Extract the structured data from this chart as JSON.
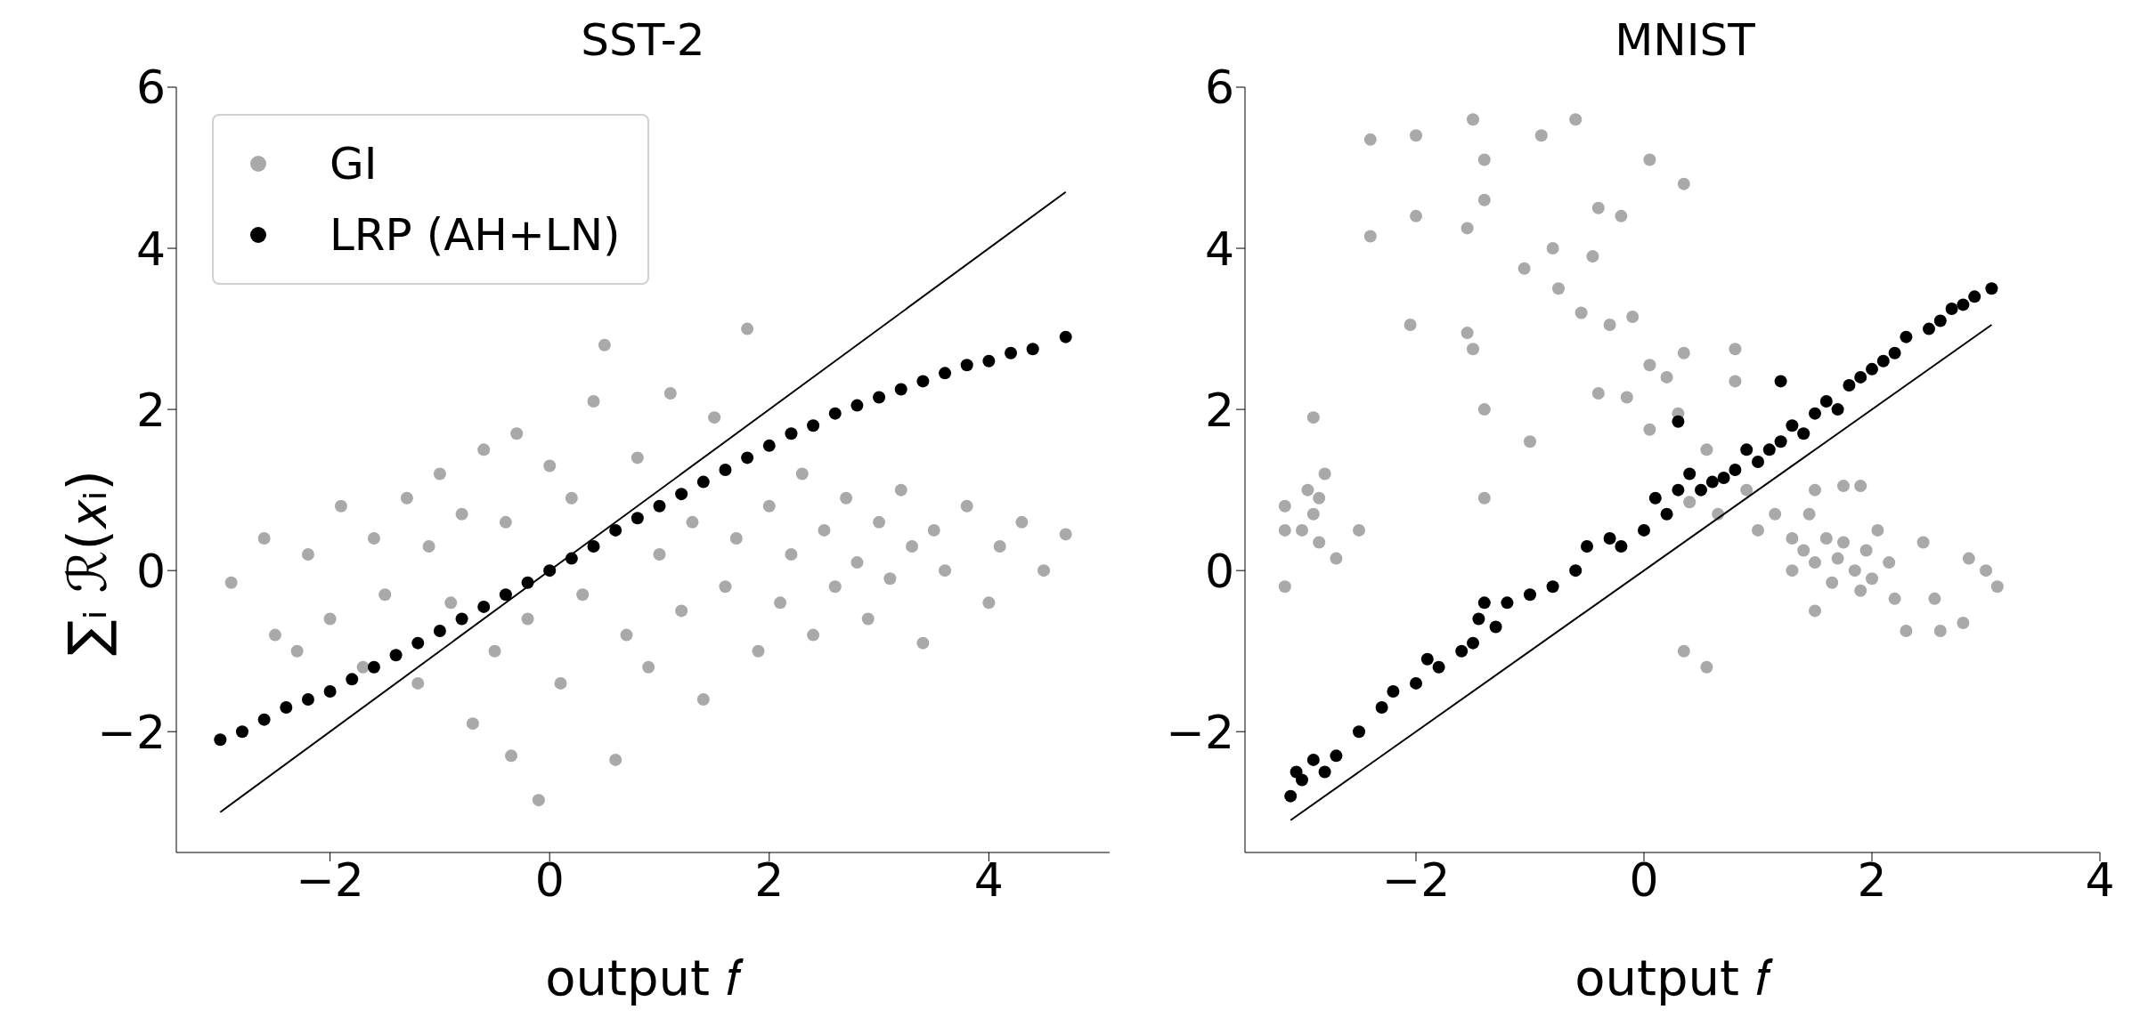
{
  "chart_data": [
    {
      "type": "scatter",
      "title": "SST-2",
      "xlabel": "output 𝑓",
      "ylabel": "∑ᵢ ℛ(𝑥ᵢ)",
      "xlim": [
        -3.4,
        5.1
      ],
      "ylim": [
        -3.5,
        6.0
      ],
      "xticks": [
        {
          "value": -2,
          "label": "−2"
        },
        0,
        2,
        4
      ],
      "yticks": [
        {
          "value": -2,
          "label": "−2"
        },
        0,
        2,
        4,
        6
      ],
      "grid": false,
      "legend": "top left",
      "series": [
        {
          "name": "GI",
          "marker": "circle",
          "color": "#a9a9a9",
          "x": [
            -2.9,
            -2.6,
            -2.5,
            -2.3,
            -2.2,
            -2.0,
            -1.9,
            -1.7,
            -1.6,
            -1.5,
            -1.3,
            -1.2,
            -1.1,
            -1.0,
            -0.9,
            -0.8,
            -0.7,
            -0.6,
            -0.5,
            -0.4,
            -0.35,
            -0.3,
            -0.2,
            -0.1,
            0.0,
            0.1,
            0.2,
            0.3,
            0.4,
            0.5,
            0.6,
            0.7,
            0.8,
            0.9,
            1.0,
            1.1,
            1.2,
            1.3,
            1.4,
            1.5,
            1.6,
            1.7,
            1.8,
            1.9,
            2.0,
            2.1,
            2.2,
            2.3,
            2.4,
            2.5,
            2.6,
            2.7,
            2.8,
            2.9,
            3.0,
            3.1,
            3.2,
            3.3,
            3.4,
            3.5,
            3.6,
            3.8,
            4.0,
            4.1,
            4.3,
            4.5,
            4.7
          ],
          "values": [
            -0.15,
            0.4,
            -0.8,
            -1.0,
            0.2,
            -0.6,
            0.8,
            -1.2,
            0.4,
            -0.3,
            0.9,
            -1.4,
            0.3,
            1.2,
            -0.4,
            0.7,
            -1.9,
            1.5,
            -1.0,
            0.6,
            -2.3,
            1.7,
            -0.6,
            -2.85,
            1.3,
            -1.4,
            0.9,
            -0.3,
            2.1,
            2.8,
            -2.35,
            -0.8,
            1.4,
            -1.2,
            0.2,
            2.2,
            -0.5,
            0.6,
            -1.6,
            1.9,
            -0.2,
            0.4,
            3.0,
            -1.0,
            0.8,
            -0.4,
            0.2,
            1.2,
            -0.8,
            0.5,
            -0.2,
            0.9,
            0.1,
            -0.6,
            0.6,
            -0.1,
            1.0,
            0.3,
            -0.9,
            0.5,
            0.0,
            0.8,
            -0.4,
            0.3,
            0.6,
            0.0,
            0.45
          ]
        },
        {
          "name": "LRP (AH+LN)",
          "marker": "circle",
          "color": "#000000",
          "x": [
            -3.0,
            -2.8,
            -2.6,
            -2.4,
            -2.2,
            -2.0,
            -1.8,
            -1.6,
            -1.4,
            -1.2,
            -1.0,
            -0.8,
            -0.6,
            -0.4,
            -0.2,
            0,
            0.2,
            0.4,
            0.6,
            0.8,
            1.0,
            1.2,
            1.4,
            1.6,
            1.8,
            2.0,
            2.2,
            2.4,
            2.6,
            2.8,
            3.0,
            3.2,
            3.4,
            3.6,
            3.8,
            4.0,
            4.2,
            4.4,
            4.7
          ],
          "values": [
            -2.1,
            -2.0,
            -1.85,
            -1.7,
            -1.6,
            -1.5,
            -1.35,
            -1.2,
            -1.05,
            -0.9,
            -0.75,
            -0.6,
            -0.45,
            -0.3,
            -0.15,
            0,
            0.15,
            0.3,
            0.5,
            0.65,
            0.8,
            0.95,
            1.1,
            1.25,
            1.4,
            1.55,
            1.7,
            1.8,
            1.95,
            2.05,
            2.15,
            2.25,
            2.35,
            2.45,
            2.55,
            2.6,
            2.7,
            2.75,
            2.9
          ]
        },
        {
          "type": "line",
          "marker": "none",
          "color": "#000000",
          "x": [
            -3.0,
            4.7
          ],
          "values": [
            -3.0,
            4.7
          ]
        }
      ]
    },
    {
      "type": "scatter",
      "title": "MNIST",
      "xlabel": "output 𝑓",
      "xlim": [
        -3.5,
        4.0
      ],
      "ylim": [
        -3.5,
        6.0
      ],
      "xticks": [
        {
          "value": -2,
          "label": "−2"
        },
        0,
        2,
        4
      ],
      "yticks": [
        {
          "value": -2,
          "label": "−2"
        },
        0,
        2,
        4,
        6
      ],
      "grid": false,
      "series": [
        {
          "marker": "circle",
          "color": "#a9a9a9",
          "x": [
            -2.4,
            -2.0,
            -1.5,
            -0.6,
            -0.9,
            -1.4,
            0.05,
            0.35,
            -2.0,
            -2.4,
            -1.55,
            -1.4,
            -0.4,
            -0.2,
            -0.8,
            -1.05,
            -0.45,
            -0.75,
            -0.55,
            -0.3,
            -0.1,
            -2.05,
            -1.55,
            -1.5,
            0.05,
            0.2,
            0.35,
            0.8,
            -0.4,
            -0.15,
            -1.4,
            -1.0,
            0.8,
            0.55,
            0.05,
            0.3,
            -2.95,
            -3.15,
            -2.85,
            -2.9,
            -2.8,
            -3.15,
            -3.0,
            -2.9,
            -2.85,
            -2.7,
            -3.15,
            -2.5,
            -1.4,
            0.35,
            0.55,
            0.4,
            0.65,
            0.9,
            1.0,
            1.15,
            1.3,
            1.4,
            1.45,
            1.5,
            1.6,
            1.65,
            1.7,
            1.75,
            1.85,
            1.9,
            1.95,
            2.0,
            2.05,
            2.15,
            2.2,
            2.3,
            2.45,
            2.55,
            2.6,
            2.8,
            2.85,
            3.0,
            3.1,
            1.5,
            1.3,
            1.75,
            1.9,
            1.5
          ],
          "values": [
            5.35,
            5.4,
            5.6,
            5.6,
            5.4,
            5.1,
            5.1,
            4.8,
            4.4,
            4.15,
            4.25,
            4.6,
            4.5,
            4.4,
            4.0,
            3.75,
            3.9,
            3.5,
            3.2,
            3.05,
            3.15,
            3.05,
            2.95,
            2.75,
            2.55,
            2.4,
            2.7,
            2.75,
            2.2,
            2.15,
            2.0,
            1.6,
            2.35,
            1.5,
            1.75,
            1.95,
            1.0,
            0.8,
            0.9,
            1.9,
            1.2,
            0.5,
            0.5,
            0.7,
            0.35,
            0.15,
            -0.2,
            0.5,
            0.9,
            -1.0,
            -1.2,
            0.85,
            0.7,
            1.0,
            0.5,
            0.7,
            0.4,
            0.25,
            0.7,
            0.1,
            0.4,
            -0.15,
            0.15,
            0.35,
            0.0,
            -0.25,
            0.25,
            -0.1,
            0.5,
            0.1,
            -0.35,
            -0.75,
            0.35,
            -0.35,
            -0.75,
            -0.65,
            0.15,
            0.0,
            -0.2,
            -0.5,
            0.0,
            1.05,
            1.05,
            1.0
          ]
        },
        {
          "marker": "circle",
          "color": "#000000",
          "x": [
            -3.1,
            -3.05,
            -3.0,
            -2.9,
            -2.8,
            -2.7,
            -2.5,
            -2.3,
            -2.2,
            -2.0,
            -1.9,
            -1.8,
            -1.6,
            -1.5,
            -1.45,
            -1.3,
            -1.2,
            -1.0,
            -0.8,
            -0.6,
            -0.5,
            -0.3,
            -0.2,
            0.0,
            0.1,
            0.2,
            0.3,
            0.4,
            0.5,
            0.6,
            0.7,
            0.8,
            0.9,
            1.0,
            1.1,
            1.2,
            1.3,
            1.4,
            1.5,
            1.6,
            1.7,
            1.8,
            1.9,
            2.0,
            2.1,
            2.2,
            2.3,
            2.5,
            2.6,
            2.7,
            2.8,
            2.9,
            3.05,
            0.3,
            -1.4,
            1.2
          ],
          "values": [
            -2.8,
            -2.5,
            -2.6,
            -2.35,
            -2.5,
            -2.3,
            -2.0,
            -1.7,
            -1.5,
            -1.4,
            -1.1,
            -1.2,
            -1.0,
            -0.9,
            -0.6,
            -0.7,
            -0.4,
            -0.3,
            -0.2,
            0.0,
            0.3,
            0.4,
            0.3,
            0.5,
            0.9,
            0.7,
            1.0,
            1.2,
            1.0,
            1.1,
            1.15,
            1.25,
            1.5,
            1.35,
            1.5,
            1.6,
            1.8,
            1.7,
            1.95,
            2.1,
            2.0,
            2.3,
            2.4,
            2.5,
            2.6,
            2.7,
            2.9,
            3.0,
            3.1,
            3.25,
            3.3,
            3.4,
            3.5,
            1.85,
            -0.4,
            2.35
          ]
        },
        {
          "type": "line",
          "marker": "none",
          "color": "#000000",
          "x": [
            -3.1,
            3.05
          ],
          "values": [
            -3.1,
            3.05
          ]
        }
      ]
    }
  ]
}
